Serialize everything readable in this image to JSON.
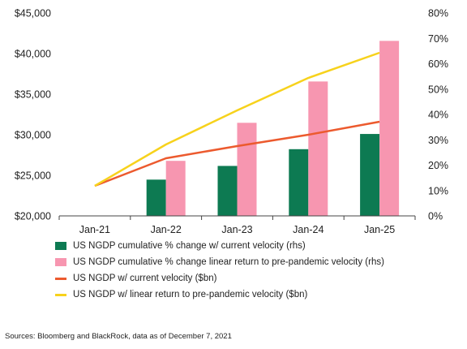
{
  "chart_data": {
    "type": "bar",
    "categories": [
      "Jan-21",
      "Jan-22",
      "Jan-23",
      "Jan-24",
      "Jan-25"
    ],
    "y_left": {
      "ylim": [
        20000,
        45000
      ],
      "ticks": [
        20000,
        25000,
        30000,
        35000,
        40000,
        45000
      ],
      "tick_labels": [
        "$20,000",
        "$25,000",
        "$30,000",
        "$35,000",
        "$40,000",
        "$45,000"
      ]
    },
    "y_right": {
      "ylim": [
        0,
        80
      ],
      "ticks": [
        0,
        10,
        20,
        30,
        40,
        50,
        60,
        70,
        80
      ],
      "tick_labels": [
        "0%",
        "10%",
        "20%",
        "30%",
        "40%",
        "50%",
        "60%",
        "70%",
        "80%"
      ]
    },
    "series": [
      {
        "name": "US NGDP cumulative % change w/ current velocity (rhs)",
        "kind": "bar",
        "axis": "right",
        "color": "#0d7a52",
        "values": [
          null,
          14.3,
          19.7,
          26.3,
          32.3
        ]
      },
      {
        "name": "US NGDP cumulative % change linear return to pre-pandemic velocity (rhs)",
        "kind": "bar",
        "axis": "right",
        "color": "#f796b0",
        "values": [
          null,
          21.7,
          36.7,
          53.0,
          69.0
        ]
      },
      {
        "name": "US NGDP w/ current velocity ($bn)",
        "kind": "line",
        "axis": "left",
        "color": "#ec5a2e",
        "values": [
          23700,
          27100,
          28600,
          30000,
          31600
        ]
      },
      {
        "name": "US NGDP w/ linear return to pre-pandemic velocity ($bn)",
        "kind": "line",
        "axis": "left",
        "color": "#f7d21c",
        "values": [
          23700,
          28800,
          33000,
          37000,
          40100
        ]
      }
    ],
    "legend_position": "bottom-left",
    "grid": false
  },
  "source_text": "Sources: Bloomberg and BlackRock, data as of December 7, 2021"
}
